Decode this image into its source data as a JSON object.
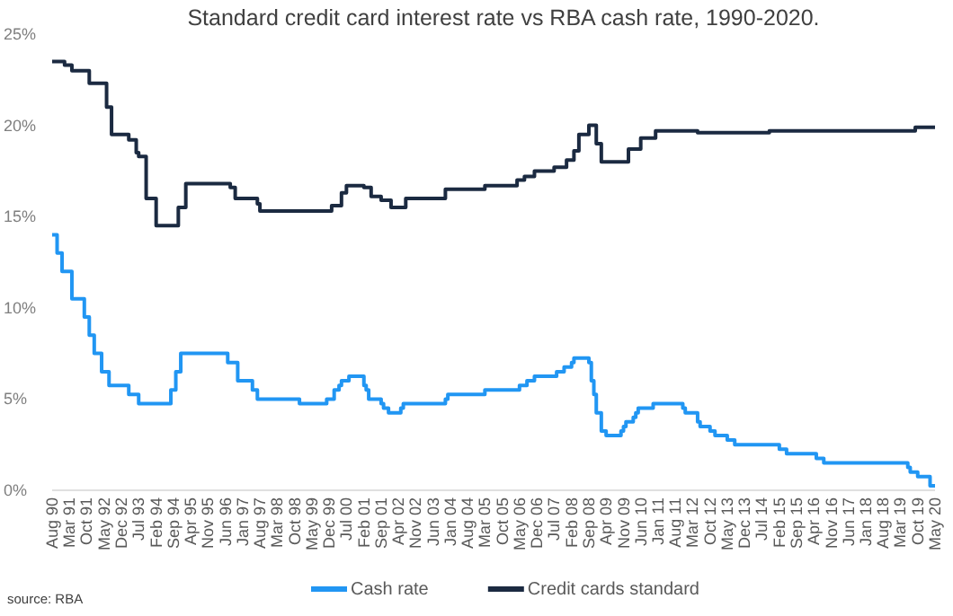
{
  "chart_data": {
    "type": "step",
    "title": "Standard credit card interest rate vs RBA cash rate, 1990-2020.",
    "annotations": [
      "source: RBA"
    ],
    "legend": "bottom",
    "xlim": [
      "1990-08",
      "2020-05"
    ],
    "xticks": [
      {
        "value": "1990-08",
        "label": "Aug 90"
      },
      {
        "value": "1991-03",
        "label": "Mar 91"
      },
      {
        "value": "1991-10",
        "label": "Oct 91"
      },
      {
        "value": "1992-05",
        "label": "May 92"
      },
      {
        "value": "1992-12",
        "label": "Dec 92"
      },
      {
        "value": "1993-07",
        "label": "Jul 93"
      },
      {
        "value": "1994-02",
        "label": "Feb 94"
      },
      {
        "value": "1994-09",
        "label": "Sep 94"
      },
      {
        "value": "1995-04",
        "label": "Apr 95"
      },
      {
        "value": "1995-11",
        "label": "Nov 95"
      },
      {
        "value": "1996-06",
        "label": "Jun 96"
      },
      {
        "value": "1997-01",
        "label": "Jan 97"
      },
      {
        "value": "1997-08",
        "label": "Aug 97"
      },
      {
        "value": "1998-03",
        "label": "Mar 98"
      },
      {
        "value": "1998-10",
        "label": "Oct 98"
      },
      {
        "value": "1999-05",
        "label": "May 99"
      },
      {
        "value": "1999-12",
        "label": "Dec 99"
      },
      {
        "value": "2000-07",
        "label": "Jul 00"
      },
      {
        "value": "2001-02",
        "label": "Feb 01"
      },
      {
        "value": "2001-09",
        "label": "Sep 01"
      },
      {
        "value": "2002-04",
        "label": "Apr 02"
      },
      {
        "value": "2002-11",
        "label": "Nov 02"
      },
      {
        "value": "2003-06",
        "label": "Jun 03"
      },
      {
        "value": "2004-01",
        "label": "Jan 04"
      },
      {
        "value": "2004-08",
        "label": "Aug 04"
      },
      {
        "value": "2005-03",
        "label": "Mar 05"
      },
      {
        "value": "2005-10",
        "label": "Oct 05"
      },
      {
        "value": "2006-05",
        "label": "May 06"
      },
      {
        "value": "2006-12",
        "label": "Dec 06"
      },
      {
        "value": "2007-07",
        "label": "Jul 07"
      },
      {
        "value": "2008-02",
        "label": "Feb 08"
      },
      {
        "value": "2008-09",
        "label": "Sep 08"
      },
      {
        "value": "2009-04",
        "label": "Apr 09"
      },
      {
        "value": "2009-11",
        "label": "Nov 09"
      },
      {
        "value": "2010-06",
        "label": "Jun 10"
      },
      {
        "value": "2011-01",
        "label": "Jan 11"
      },
      {
        "value": "2011-08",
        "label": "Aug 11"
      },
      {
        "value": "2012-03",
        "label": "Mar 12"
      },
      {
        "value": "2012-10",
        "label": "Oct 12"
      },
      {
        "value": "2013-05",
        "label": "May 13"
      },
      {
        "value": "2013-12",
        "label": "Dec 13"
      },
      {
        "value": "2014-07",
        "label": "Jul 14"
      },
      {
        "value": "2015-02",
        "label": "Feb 15"
      },
      {
        "value": "2015-09",
        "label": "Sep 15"
      },
      {
        "value": "2016-04",
        "label": "Apr 16"
      },
      {
        "value": "2016-11",
        "label": "Nov 16"
      },
      {
        "value": "2017-06",
        "label": "Jun 17"
      },
      {
        "value": "2018-01",
        "label": "Jan 18"
      },
      {
        "value": "2018-08",
        "label": "Aug 18"
      },
      {
        "value": "2019-03",
        "label": "Mar 19"
      },
      {
        "value": "2019-10",
        "label": "Oct 19"
      },
      {
        "value": "2020-05",
        "label": "May 20"
      }
    ],
    "ylim": [
      0,
      25
    ],
    "yticks": [
      {
        "value": 0,
        "label": "0%"
      },
      {
        "value": 5,
        "label": "5%"
      },
      {
        "value": 10,
        "label": "10%"
      },
      {
        "value": 15,
        "label": "15%"
      },
      {
        "value": 20,
        "label": "20%"
      },
      {
        "value": 25,
        "label": "25%"
      }
    ],
    "series": [
      {
        "name": "Cash rate",
        "color": "#2196f3",
        "x": [
          "1990-08",
          "1990-10",
          "1990-12",
          "1991-04",
          "1991-09",
          "1991-11",
          "1992-01",
          "1992-04",
          "1992-07",
          "1993-03",
          "1993-07",
          "1994-08",
          "1994-10",
          "1994-12",
          "1996-07",
          "1996-11",
          "1997-05",
          "1997-07",
          "1998-12",
          "1999-11",
          "2000-02",
          "2000-04",
          "2000-05",
          "2000-08",
          "2001-02",
          "2001-03",
          "2001-04",
          "2001-09",
          "2001-10",
          "2001-12",
          "2002-05",
          "2002-06",
          "2003-11",
          "2003-12",
          "2005-03",
          "2006-05",
          "2006-08",
          "2006-11",
          "2007-08",
          "2007-11",
          "2008-02",
          "2008-03",
          "2008-09",
          "2008-10",
          "2008-11",
          "2008-12",
          "2009-02",
          "2009-04",
          "2009-10",
          "2009-11",
          "2009-12",
          "2010-03",
          "2010-04",
          "2010-05",
          "2010-11",
          "2011-11",
          "2011-12",
          "2012-05",
          "2012-06",
          "2012-10",
          "2012-12",
          "2013-05",
          "2013-08",
          "2015-02",
          "2015-05",
          "2016-05",
          "2016-08",
          "2019-06",
          "2019-07",
          "2019-10",
          "2020-03",
          "2020-05"
        ],
        "values": [
          14,
          13,
          12,
          10.5,
          9.5,
          8.5,
          7.5,
          6.5,
          5.75,
          5.25,
          4.75,
          5.5,
          6.5,
          7.5,
          7,
          6,
          5.5,
          5,
          4.75,
          5,
          5.5,
          5.75,
          6,
          6.25,
          5.75,
          5.5,
          5,
          4.75,
          4.5,
          4.25,
          4.5,
          4.75,
          5,
          5.25,
          5.5,
          5.75,
          6,
          6.25,
          6.5,
          6.75,
          7,
          7.25,
          7,
          6,
          5.25,
          4.25,
          3.25,
          3,
          3.25,
          3.5,
          3.75,
          4,
          4.25,
          4.5,
          4.75,
          4.5,
          4.25,
          3.75,
          3.5,
          3.25,
          3,
          2.75,
          2.5,
          2.25,
          2,
          1.75,
          1.5,
          1.25,
          1,
          0.75,
          0.25,
          0.25
        ]
      },
      {
        "name": "Credit cards standard",
        "color": "#1b2a41",
        "x": [
          "1990-08",
          "1991-01",
          "1991-04",
          "1991-11",
          "1992-06",
          "1992-08",
          "1993-03",
          "1993-06",
          "1993-07",
          "1993-10",
          "1994-02",
          "1994-11",
          "1995-02",
          "1996-08",
          "1996-10",
          "1997-07",
          "1997-08",
          "2000-01",
          "2000-05",
          "2000-07",
          "2001-02",
          "2001-05",
          "2001-09",
          "2002-01",
          "2002-07",
          "2003-11",
          "2005-03",
          "2006-04",
          "2006-07",
          "2006-11",
          "2007-07",
          "2007-12",
          "2008-03",
          "2008-05",
          "2008-09",
          "2008-12",
          "2009-02",
          "2009-10",
          "2010-01",
          "2010-06",
          "2010-12",
          "2012-05",
          "2014-10",
          "2019-09",
          "2020-05"
        ],
        "values": [
          23.5,
          23.3,
          23,
          22.3,
          21,
          19.5,
          19.2,
          18.5,
          18.3,
          16,
          14.5,
          15.5,
          16.8,
          16.6,
          16,
          15.7,
          15.3,
          15.6,
          16.3,
          16.7,
          16.6,
          16.1,
          15.9,
          15.5,
          16,
          16.5,
          16.7,
          17,
          17.2,
          17.5,
          17.7,
          18.1,
          18.6,
          19.5,
          20,
          19,
          18,
          18,
          18.7,
          19.3,
          19.7,
          19.6,
          19.7,
          19.9,
          19.9
        ]
      }
    ]
  }
}
